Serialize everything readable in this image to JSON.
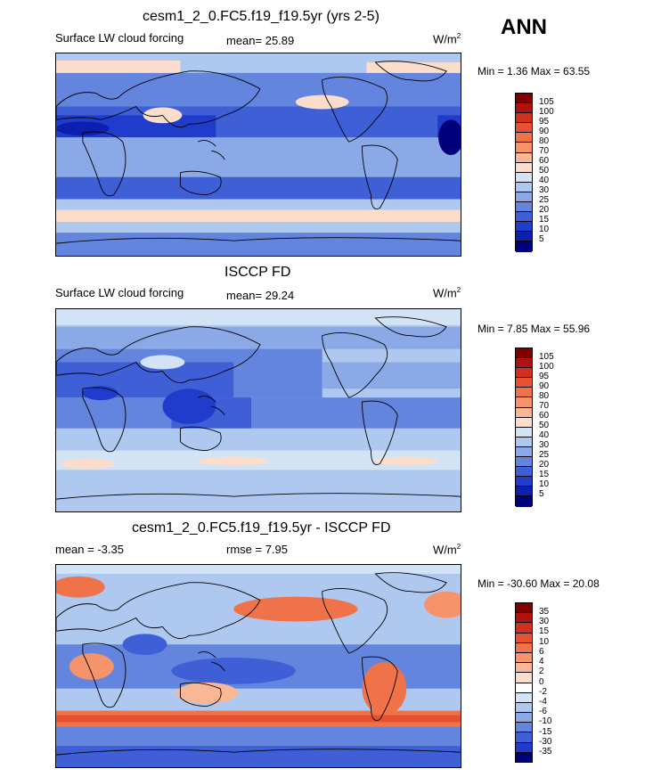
{
  "season": "ANN",
  "panels": [
    {
      "title": "cesm1_2_0.FC5.f19_f19.5yr (yrs 2-5)",
      "left_label": "Surface LW cloud forcing",
      "mid_label": "mean=  25.89",
      "units": "W/m",
      "units_sup": "2",
      "minmax": "Min =   1.36 Max =  63.55",
      "colorbar": {
        "ticks": [
          "105",
          "100",
          "95",
          "90",
          "80",
          "70",
          "60",
          "50",
          "40",
          "30",
          "25",
          "20",
          "15",
          "10",
          "5"
        ],
        "colors": [
          "#800000",
          "#b2120f",
          "#d32f1e",
          "#e6512f",
          "#f07248",
          "#f5946a",
          "#f9b795",
          "#fcdccb",
          "#d3e3f6",
          "#aec8f0",
          "#8ba9e7",
          "#6485de",
          "#3e5fd6",
          "#1f3ccc",
          "#0d1fae",
          "#00007b"
        ]
      }
    },
    {
      "title": "ISCCP FD",
      "left_label": "Surface LW cloud forcing",
      "mid_label": "mean=  29.24",
      "units": "W/m",
      "units_sup": "2",
      "minmax": "Min =   7.85 Max =  55.96",
      "colorbar": {
        "ticks": [
          "105",
          "100",
          "95",
          "90",
          "80",
          "70",
          "60",
          "50",
          "40",
          "30",
          "25",
          "20",
          "15",
          "10",
          "5"
        ],
        "colors": [
          "#800000",
          "#b2120f",
          "#d32f1e",
          "#e6512f",
          "#f07248",
          "#f5946a",
          "#f9b795",
          "#fcdccb",
          "#d3e3f6",
          "#aec8f0",
          "#8ba9e7",
          "#6485de",
          "#3e5fd6",
          "#1f3ccc",
          "#0d1fae",
          "#00007b"
        ]
      }
    },
    {
      "title": "cesm1_2_0.FC5.f19_f19.5yr - ISCCP FD",
      "left_label": "mean =  -3.35",
      "mid_label": "rmse =   7.95",
      "units": "W/m",
      "units_sup": "2",
      "minmax": "Min = -30.60 Max =  20.08",
      "colorbar": {
        "ticks": [
          "35",
          "30",
          "15",
          "10",
          "6",
          "4",
          "2",
          "0",
          "-2",
          "-4",
          "-6",
          "-10",
          "-15",
          "-30",
          "-35"
        ],
        "colors": [
          "#800000",
          "#b2120f",
          "#d32f1e",
          "#e6512f",
          "#f07248",
          "#f5946a",
          "#f9b795",
          "#fcdccb",
          "#ffffff",
          "#d3e3f6",
          "#aec8f0",
          "#8ba9e7",
          "#6485de",
          "#3e5fd6",
          "#1f3ccc",
          "#00007b"
        ]
      }
    }
  ]
}
